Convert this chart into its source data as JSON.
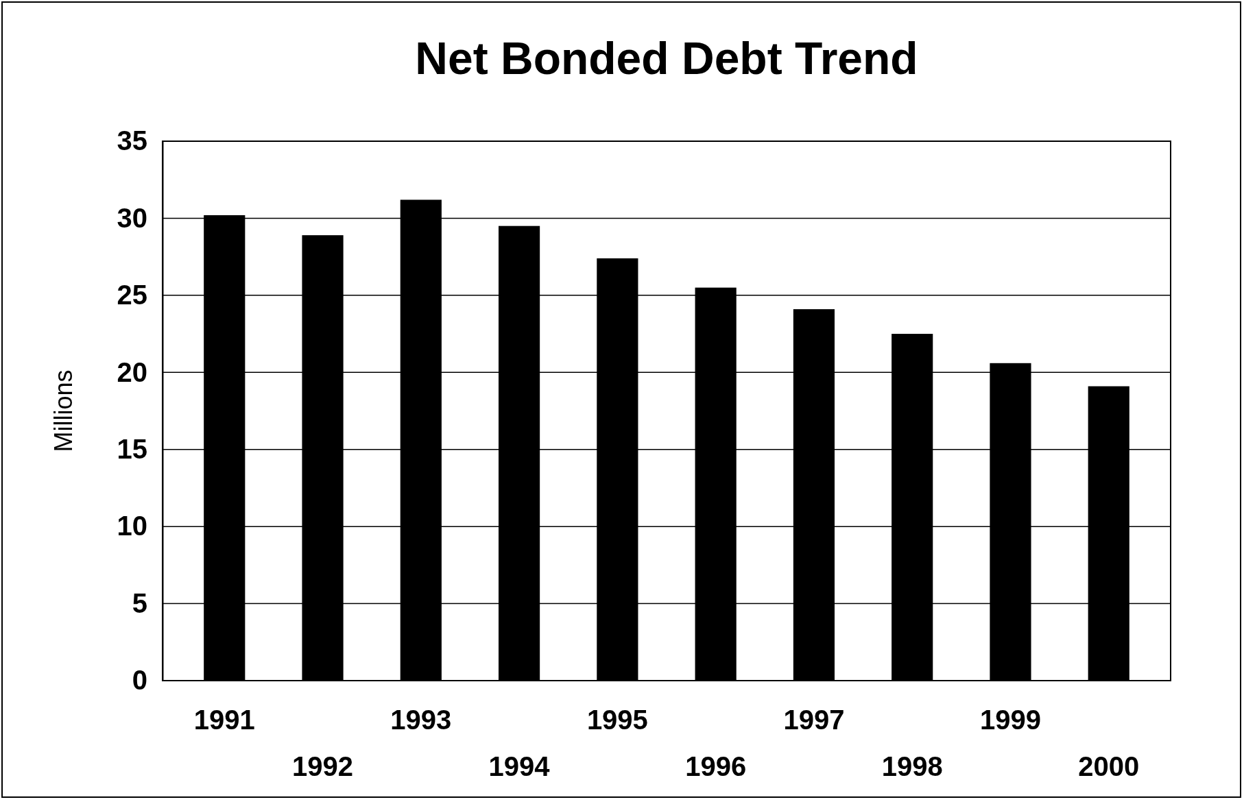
{
  "chart_data": {
    "type": "bar",
    "title": "Net Bonded Debt Trend",
    "ylabel": "Millions",
    "categories": [
      "1991",
      "1992",
      "1993",
      "1994",
      "1995",
      "1996",
      "1997",
      "1998",
      "1999",
      "2000"
    ],
    "values": [
      30.2,
      28.9,
      31.2,
      29.5,
      27.4,
      25.5,
      24.1,
      22.5,
      20.6,
      19.1
    ],
    "color": "#000000",
    "ylim": [
      0,
      35
    ],
    "yticks": [
      0,
      5,
      10,
      15,
      20,
      25,
      30,
      35
    ],
    "grid": "y"
  }
}
